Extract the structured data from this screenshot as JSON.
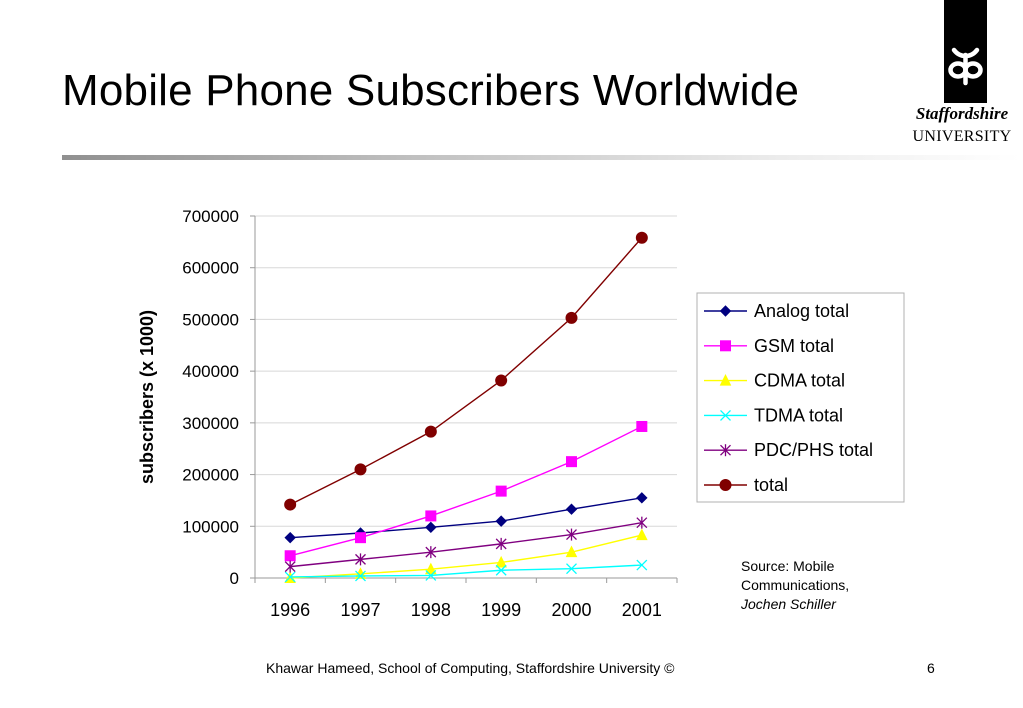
{
  "slide": {
    "title": "Mobile Phone Subscribers Worldwide",
    "source_lines": [
      "Source: Mobile",
      "Communications,"
    ],
    "source_author": "Jochen Schiller",
    "footer": "Khawar Hameed, School of Computing, Staffordshire University ©",
    "page_number": "6"
  },
  "logo": {
    "name": "Staffordshire",
    "subtitle": "UNIVERSITY"
  },
  "chart_data": {
    "type": "line",
    "x": [
      "1996",
      "1997",
      "1998",
      "1999",
      "2000",
      "2001"
    ],
    "ylabel": "subscribers (x 1000)",
    "ylim": [
      0,
      700000
    ],
    "yticks": [
      "0",
      "100000",
      "200000",
      "300000",
      "400000",
      "500000",
      "600000",
      "700000"
    ],
    "grid": true,
    "legend_position": "right",
    "series": [
      {
        "name": "Analog total",
        "color": "#000080",
        "marker": "diamond",
        "values": [
          78000,
          87000,
          98000,
          110000,
          133000,
          155000
        ]
      },
      {
        "name": "GSM total",
        "color": "#ff00ff",
        "marker": "square",
        "values": [
          43000,
          78000,
          120000,
          168000,
          225000,
          293000
        ]
      },
      {
        "name": "CDMA total",
        "color": "#ffff00",
        "marker": "triangle",
        "values": [
          0,
          8000,
          17000,
          30000,
          50000,
          83000
        ]
      },
      {
        "name": "TDMA total",
        "color": "#00ffff",
        "marker": "x",
        "values": [
          2000,
          4000,
          5000,
          15000,
          18000,
          25000
        ]
      },
      {
        "name": "PDC/PHS total",
        "color": "#800080",
        "marker": "star",
        "values": [
          22000,
          36000,
          50000,
          66000,
          84000,
          107000
        ]
      },
      {
        "name": "total",
        "color": "#800000",
        "marker": "circle",
        "values": [
          142000,
          210000,
          283000,
          382000,
          503000,
          658000
        ]
      }
    ]
  }
}
